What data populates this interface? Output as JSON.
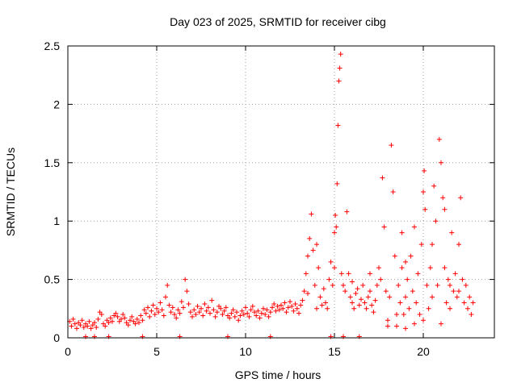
{
  "chart_data": {
    "type": "scatter",
    "title": "Day 023 of 2025, SRMTID for receiver cibg",
    "xlabel": "GPS time / hours",
    "ylabel": "SRMTID / TECUs",
    "xlim": [
      0,
      24
    ],
    "ylim": [
      0,
      2.5
    ],
    "x_ticks": [
      0,
      5,
      10,
      15,
      20
    ],
    "x_tick_labels": [
      "0",
      "5",
      "10",
      "15",
      "20"
    ],
    "y_ticks": [
      0,
      0.5,
      1,
      1.5,
      2,
      2.5
    ],
    "y_tick_labels": [
      "0",
      "0.5",
      "1",
      "1.5",
      "2",
      "2.5"
    ],
    "grid": true,
    "marker": "plus",
    "color": "#ff0000",
    "series": [
      {
        "name": "SRMTID",
        "points": [
          [
            0.1,
            0.14
          ],
          [
            0.2,
            0.1
          ],
          [
            0.3,
            0.16
          ],
          [
            0.4,
            0.12
          ],
          [
            0.5,
            0.08
          ],
          [
            0.6,
            0.13
          ],
          [
            0.7,
            0.11
          ],
          [
            0.8,
            0.15
          ],
          [
            0.9,
            0.09
          ],
          [
            1.0,
            0.12
          ],
          [
            1.1,
            0.1
          ],
          [
            1.2,
            0.14
          ],
          [
            1.3,
            0.08
          ],
          [
            1.4,
            0.11
          ],
          [
            1.5,
            0.13
          ],
          [
            1.6,
            0.09
          ],
          [
            1.7,
            0.16
          ],
          [
            1.8,
            0.22
          ],
          [
            1.9,
            0.2
          ],
          [
            2.0,
            0.12
          ],
          [
            2.1,
            0.1
          ],
          [
            2.2,
            0.15
          ],
          [
            2.3,
            0.13
          ],
          [
            2.4,
            0.17
          ],
          [
            2.5,
            0.14
          ],
          [
            2.6,
            0.19
          ],
          [
            2.7,
            0.21
          ],
          [
            2.8,
            0.18
          ],
          [
            2.9,
            0.14
          ],
          [
            3.0,
            0.16
          ],
          [
            3.1,
            0.2
          ],
          [
            3.2,
            0.17
          ],
          [
            3.3,
            0.13
          ],
          [
            3.4,
            0.11
          ],
          [
            3.5,
            0.15
          ],
          [
            3.6,
            0.18
          ],
          [
            3.7,
            0.14
          ],
          [
            3.8,
            0.12
          ],
          [
            3.9,
            0.16
          ],
          [
            4.0,
            0.13
          ],
          [
            4.1,
            0.19
          ],
          [
            4.2,
            0.15
          ],
          [
            4.3,
            0.24
          ],
          [
            4.4,
            0.21
          ],
          [
            4.5,
            0.26
          ],
          [
            4.6,
            0.18
          ],
          [
            4.7,
            0.23
          ],
          [
            4.8,
            0.28
          ],
          [
            4.9,
            0.2
          ],
          [
            5.0,
            0.25
          ],
          [
            5.1,
            0.22
          ],
          [
            5.2,
            0.3
          ],
          [
            5.3,
            0.24
          ],
          [
            5.4,
            0.19
          ],
          [
            5.5,
            0.35
          ],
          [
            5.6,
            0.45
          ],
          [
            5.7,
            0.28
          ],
          [
            5.8,
            0.22
          ],
          [
            5.9,
            0.26
          ],
          [
            6.0,
            0.2
          ],
          [
            6.1,
            0.17
          ],
          [
            6.2,
            0.24
          ],
          [
            6.3,
            0.21
          ],
          [
            6.4,
            0.31
          ],
          [
            6.5,
            0.26
          ],
          [
            6.6,
            0.5
          ],
          [
            6.7,
            0.4
          ],
          [
            6.8,
            0.29
          ],
          [
            6.9,
            0.22
          ],
          [
            7.0,
            0.18
          ],
          [
            7.1,
            0.24
          ],
          [
            7.2,
            0.2
          ],
          [
            7.3,
            0.27
          ],
          [
            7.4,
            0.22
          ],
          [
            7.5,
            0.25
          ],
          [
            7.6,
            0.19
          ],
          [
            7.7,
            0.29
          ],
          [
            7.8,
            0.23
          ],
          [
            7.9,
            0.26
          ],
          [
            8.0,
            0.21
          ],
          [
            8.1,
            0.32
          ],
          [
            8.2,
            0.24
          ],
          [
            8.3,
            0.18
          ],
          [
            8.4,
            0.22
          ],
          [
            8.5,
            0.27
          ],
          [
            8.6,
            0.25
          ],
          [
            8.7,
            0.2
          ],
          [
            8.8,
            0.23
          ],
          [
            8.9,
            0.26
          ],
          [
            9.0,
            0.19
          ],
          [
            9.1,
            0.17
          ],
          [
            9.2,
            0.21
          ],
          [
            9.3,
            0.24
          ],
          [
            9.4,
            0.18
          ],
          [
            9.5,
            0.22
          ],
          [
            9.6,
            0.15
          ],
          [
            9.7,
            0.19
          ],
          [
            9.8,
            0.23
          ],
          [
            9.9,
            0.2
          ],
          [
            10.0,
            0.26
          ],
          [
            10.1,
            0.21
          ],
          [
            10.2,
            0.18
          ],
          [
            10.3,
            0.24
          ],
          [
            10.4,
            0.27
          ],
          [
            10.5,
            0.22
          ],
          [
            10.6,
            0.19
          ],
          [
            10.7,
            0.23
          ],
          [
            10.8,
            0.17
          ],
          [
            10.9,
            0.21
          ],
          [
            11.0,
            0.25
          ],
          [
            11.1,
            0.2
          ],
          [
            11.2,
            0.24
          ],
          [
            11.3,
            0.18
          ],
          [
            11.4,
            0.22
          ],
          [
            11.5,
            0.26
          ],
          [
            11.6,
            0.29
          ],
          [
            11.7,
            0.23
          ],
          [
            11.8,
            0.27
          ],
          [
            11.9,
            0.24
          ],
          [
            12.0,
            0.28
          ],
          [
            12.1,
            0.25
          ],
          [
            12.2,
            0.3
          ],
          [
            12.3,
            0.22
          ],
          [
            12.4,
            0.26
          ],
          [
            12.5,
            0.31
          ],
          [
            12.6,
            0.27
          ],
          [
            12.7,
            0.23
          ],
          [
            12.8,
            0.29
          ],
          [
            12.9,
            0.25
          ],
          [
            13.0,
            0.21
          ],
          [
            13.1,
            0.28
          ],
          [
            13.2,
            0.32
          ],
          [
            13.3,
            0.4
          ],
          [
            13.4,
            0.55
          ],
          [
            13.5,
            0.7
          ],
          [
            13.6,
            0.85
          ],
          [
            13.7,
            1.06
          ],
          [
            13.8,
            0.75
          ],
          [
            13.9,
            0.45
          ],
          [
            14.0,
            0.8
          ],
          [
            14.1,
            0.6
          ],
          [
            14.2,
            0.35
          ],
          [
            14.3,
            0.28
          ],
          [
            14.4,
            0.42
          ],
          [
            14.5,
            0.3
          ],
          [
            14.6,
            0.25
          ],
          [
            14.7,
            0.5
          ],
          [
            14.8,
            0.65
          ],
          [
            14.9,
            0.45
          ],
          [
            15.0,
            0.9
          ],
          [
            15.05,
            1.05
          ],
          [
            15.1,
            0.95
          ],
          [
            15.15,
            1.32
          ],
          [
            15.2,
            1.82
          ],
          [
            15.25,
            2.2
          ],
          [
            15.3,
            2.31
          ],
          [
            15.35,
            2.43
          ],
          [
            15.4,
            0.55
          ],
          [
            15.5,
            0.45
          ],
          [
            15.6,
            0.4
          ],
          [
            15.7,
            1.08
          ],
          [
            15.8,
            0.55
          ],
          [
            15.9,
            0.35
          ],
          [
            16.0,
            0.3
          ],
          [
            16.1,
            0.25
          ],
          [
            16.2,
            0.38
          ],
          [
            16.3,
            0.42
          ],
          [
            16.4,
            0.28
          ],
          [
            16.5,
            0.33
          ],
          [
            16.6,
            0.45
          ],
          [
            16.7,
            0.3
          ],
          [
            16.8,
            0.25
          ],
          [
            16.9,
            0.35
          ],
          [
            17.0,
            0.4
          ],
          [
            17.1,
            0.28
          ],
          [
            17.2,
            0.22
          ],
          [
            17.3,
            0.32
          ],
          [
            17.4,
            0.45
          ],
          [
            17.5,
            0.6
          ],
          [
            17.6,
            0.5
          ],
          [
            17.7,
            1.37
          ],
          [
            17.8,
            0.95
          ],
          [
            17.9,
            0.4
          ],
          [
            18.0,
            0.15
          ],
          [
            18.1,
            0.35
          ],
          [
            18.2,
            1.65
          ],
          [
            18.3,
            1.25
          ],
          [
            18.4,
            0.7
          ],
          [
            18.5,
            0.2
          ],
          [
            18.6,
            0.45
          ],
          [
            18.7,
            0.3
          ],
          [
            18.8,
            0.6
          ],
          [
            18.9,
            0.2
          ],
          [
            19.0,
            0.35
          ],
          [
            19.1,
            0.5
          ],
          [
            19.2,
            0.25
          ],
          [
            19.3,
            0.7
          ],
          [
            19.4,
            0.4
          ],
          [
            19.5,
            0.95
          ],
          [
            19.6,
            0.3
          ],
          [
            19.7,
            0.55
          ],
          [
            19.8,
            0.2
          ],
          [
            19.9,
            0.8
          ],
          [
            20.0,
            1.25
          ],
          [
            20.05,
            1.43
          ],
          [
            20.1,
            1.1
          ],
          [
            20.2,
            0.45
          ],
          [
            20.3,
            0.25
          ],
          [
            20.4,
            0.6
          ],
          [
            20.5,
            0.35
          ],
          [
            20.6,
            1.3
          ],
          [
            20.7,
            1.0
          ],
          [
            20.8,
            0.45
          ],
          [
            20.9,
            1.7
          ],
          [
            21.0,
            1.5
          ],
          [
            21.1,
            1.2
          ],
          [
            21.2,
            0.6
          ],
          [
            21.3,
            0.3
          ],
          [
            21.4,
            0.5
          ],
          [
            21.5,
            0.25
          ],
          [
            21.6,
            0.9
          ],
          [
            21.7,
            0.4
          ],
          [
            21.8,
            0.55
          ],
          [
            21.9,
            0.35
          ],
          [
            22.0,
            0.8
          ],
          [
            22.1,
            1.2
          ],
          [
            22.2,
            0.5
          ],
          [
            22.3,
            0.3
          ],
          [
            22.4,
            0.45
          ],
          [
            22.5,
            0.25
          ],
          [
            22.6,
            0.35
          ],
          [
            22.7,
            0.2
          ],
          [
            22.8,
            0.3
          ],
          [
            13.5,
            0.38
          ],
          [
            14.0,
            0.25
          ],
          [
            15.0,
            0.6
          ],
          [
            16.0,
            0.48
          ],
          [
            17.0,
            0.55
          ],
          [
            18.0,
            0.1
          ],
          [
            18.5,
            0.1
          ],
          [
            19.0,
            0.08
          ],
          [
            19.5,
            0.12
          ],
          [
            20.0,
            0.15
          ],
          [
            21.0,
            0.12
          ],
          [
            21.5,
            0.45
          ],
          [
            22.0,
            0.4
          ],
          [
            20.5,
            0.8
          ],
          [
            19.0,
            0.65
          ],
          [
            18.8,
            0.9
          ],
          [
            21.2,
            1.1
          ],
          [
            1.0,
            0.01
          ],
          [
            1.5,
            0.01
          ],
          [
            2.3,
            0.01
          ],
          [
            4.2,
            0.01
          ],
          [
            6.3,
            0.01
          ],
          [
            9.0,
            0.01
          ],
          [
            11.4,
            0.01
          ],
          [
            14.8,
            0.01
          ],
          [
            15.5,
            0.01
          ],
          [
            16.4,
            0.01
          ]
        ]
      }
    ]
  }
}
